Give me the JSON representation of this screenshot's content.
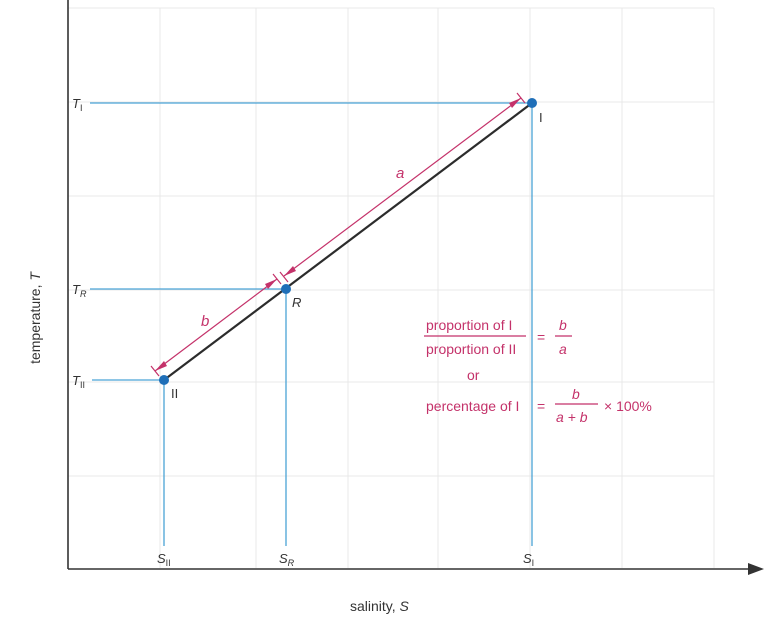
{
  "axes": {
    "x_label_text": "salinity,",
    "x_label_symbol": "S",
    "y_label_text": "temperature,",
    "y_label_symbol": "T"
  },
  "ticks": {
    "T_I": {
      "main": "T",
      "sub": "I"
    },
    "T_R": {
      "main": "T",
      "sub": "R"
    },
    "T_II": {
      "main": "T",
      "sub": "II"
    },
    "S_II": {
      "main": "S",
      "sub": "II"
    },
    "S_R": {
      "main": "S",
      "sub": "R"
    },
    "S_I": {
      "main": "S",
      "sub": "I"
    }
  },
  "points": {
    "I": "I",
    "R": "R",
    "II": "II"
  },
  "dimensions": {
    "a": "a",
    "b": "b"
  },
  "formula": {
    "ratio_numerator": "proportion of I",
    "ratio_denominator": "proportion of II",
    "equals": "=",
    "frac_top": "b",
    "frac_bottom": "a",
    "or": "or",
    "percentage_label": "percentage of I",
    "pct_frac_top": "b",
    "pct_frac_bottom": "a + b",
    "times_100": "× 100%"
  },
  "colors": {
    "guide_blue": "#4aa3d6",
    "point_blue": "#1f6fb8",
    "formula_pink": "#c4326a",
    "mixing_line": "#2c2c2c",
    "axis": "#333333",
    "grid": "#e6e6e6"
  }
}
